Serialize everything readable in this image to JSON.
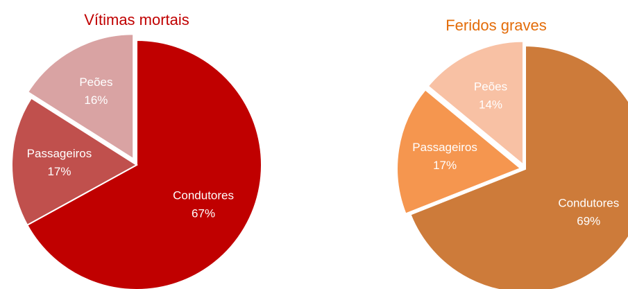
{
  "chart_data": [
    {
      "type": "pie",
      "title": "Vítimas mortais",
      "title_color": "#c00000",
      "categories": [
        "Condutores",
        "Passageiros",
        "Peões"
      ],
      "values": [
        67,
        17,
        16
      ],
      "value_labels": [
        "67%",
        "17%",
        "16%"
      ],
      "colors": [
        "#c00000",
        "#c0504d",
        "#d9a3a3"
      ]
    },
    {
      "type": "pie",
      "title": "Feridos graves",
      "title_color": "#e36c09",
      "categories": [
        "Condutores",
        "Passageiros",
        "Peões"
      ],
      "values": [
        69,
        17,
        14
      ],
      "value_labels": [
        "69%",
        "17%",
        "14%"
      ],
      "colors": [
        "#cd7b3a",
        "#f5964f",
        "#f8c1a4"
      ]
    }
  ]
}
